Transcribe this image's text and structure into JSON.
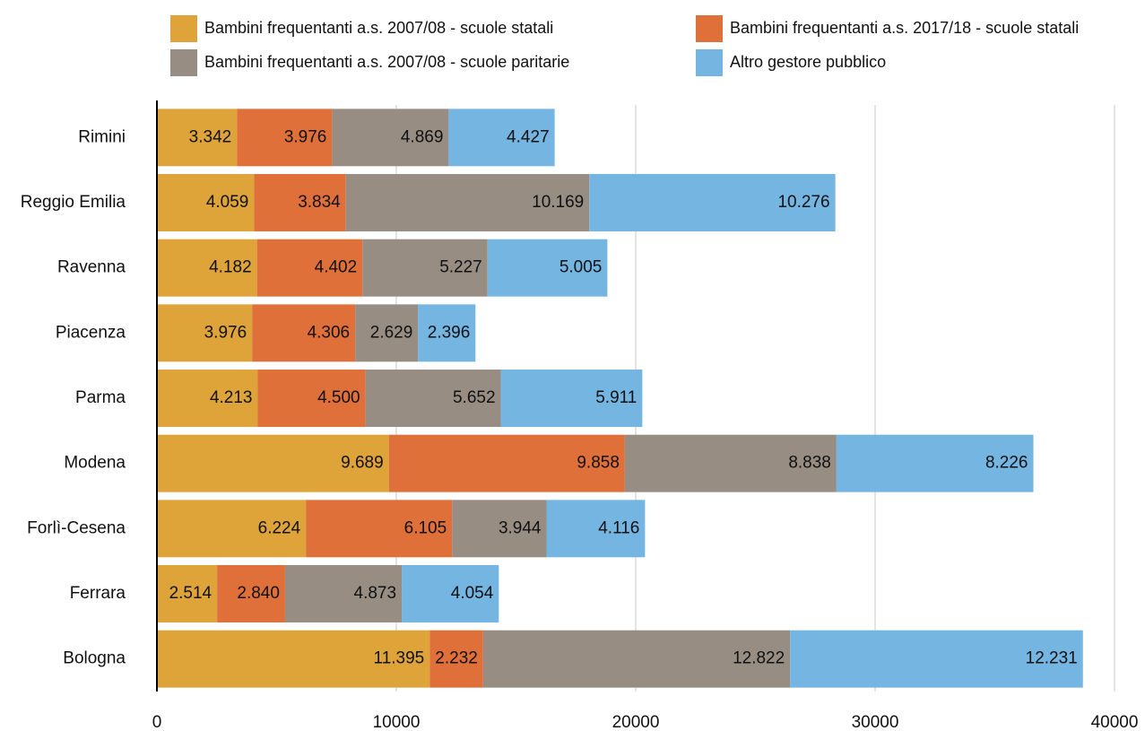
{
  "chart_data": {
    "type": "stacked-bar-horizontal",
    "categories": [
      "Rimini",
      "Reggio Emilia",
      "Ravenna",
      "Piacenza",
      "Parma",
      "Modena",
      "Forlì-Cesena",
      "Ferrara",
      "Bologna"
    ],
    "series": [
      {
        "name": "Bambini frequentanti a.s. 2007/08 - scuole statali",
        "color": "#dea43a",
        "values": [
          3342,
          4059,
          4182,
          3976,
          4213,
          9689,
          6224,
          2514,
          11395
        ],
        "value_labels": [
          "3.342",
          "4.059",
          "4.182",
          "3.976",
          "4.213",
          "9.689",
          "6.224",
          "2.514",
          "11.395"
        ]
      },
      {
        "name": "Bambini frequentanti a.s. 2017/18 - scuole statali",
        "color": "#e0703a",
        "values": [
          3976,
          3834,
          4402,
          4306,
          4500,
          9858,
          6105,
          2840,
          2232
        ],
        "value_labels": [
          "3.976",
          "3.834",
          "4.402",
          "4.306",
          "4.500",
          "9.858",
          "6.105",
          "2.840",
          "2.232"
        ]
      },
      {
        "name": "Bambini frequentanti a.s. 2007/08 - scuole paritarie",
        "color": "#978d83",
        "values": [
          4869,
          10169,
          5227,
          2629,
          5652,
          8838,
          3944,
          4873,
          12822
        ],
        "value_labels": [
          "4.869",
          "10.169",
          "5.227",
          "2.629",
          "5.652",
          "8.838",
          "3.944",
          "4.873",
          "12.822"
        ]
      },
      {
        "name": "Altro gestore pubblico",
        "color": "#74b5e2",
        "values": [
          4427,
          10276,
          5005,
          2396,
          5911,
          8226,
          4116,
          4054,
          12231
        ],
        "value_labels": [
          "4.427",
          "10.276",
          "5.005",
          "2.396",
          "5.911",
          "8.226",
          "4.116",
          "4.054",
          "12.231"
        ]
      }
    ],
    "xlim": [
      0,
      40000
    ],
    "xticks": [
      0,
      10000,
      20000,
      30000,
      40000
    ],
    "grid": true,
    "legend": "top"
  }
}
